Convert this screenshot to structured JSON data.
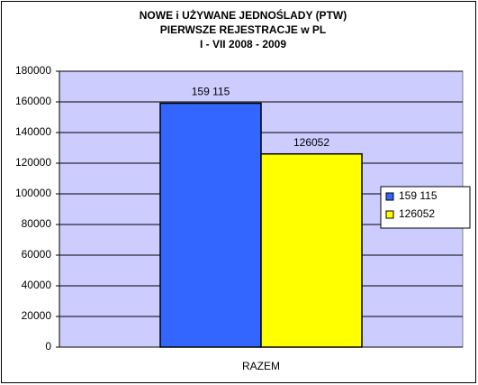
{
  "chart_data": {
    "type": "bar",
    "title": [
      "NOWE i UŻYWANE JEDNOŚLADY (PTW)",
      "PIERWSZE REJESTRACJE w PL",
      "I - VII 2008 - 2009"
    ],
    "categories": [
      "RAZEM"
    ],
    "series": [
      {
        "name": "159 115",
        "color": "#3366ff",
        "values": [
          159115
        ],
        "value_labels": [
          "159 115"
        ]
      },
      {
        "name": "126052",
        "color": "#ffff00",
        "values": [
          126052
        ]
      }
    ],
    "ylim": [
      0,
      180000
    ],
    "yticks": [
      0,
      20000,
      40000,
      60000,
      80000,
      100000,
      120000,
      140000,
      160000,
      180000
    ],
    "grid": true,
    "legend": "right"
  }
}
